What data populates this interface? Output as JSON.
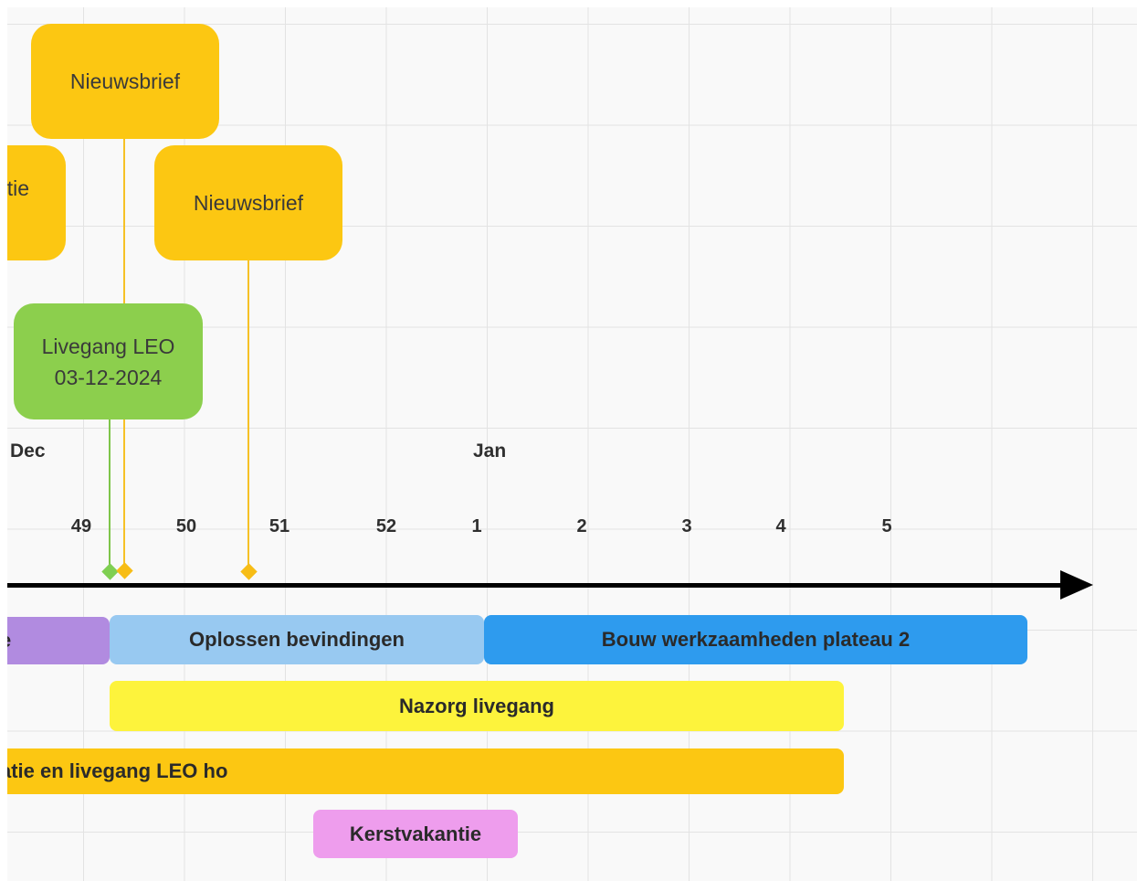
{
  "board": {
    "cards": [
      {
        "label": "Nieuwsbrief",
        "color": "#fcc712"
      },
      {
        "label": "tie",
        "color": "#fcc712"
      },
      {
        "label": "Nieuwsbrief",
        "color": "#fcc712"
      },
      {
        "label": "Livegang LEO\n03-12-2024",
        "color": "#8ccf4d"
      }
    ]
  },
  "timeline": {
    "months": [
      "Dec",
      "Jan"
    ],
    "weeks": [
      "49",
      "50",
      "51",
      "52",
      "1",
      "2",
      "3",
      "4",
      "5"
    ]
  },
  "bars": [
    {
      "label": "e",
      "color": "#b18be0"
    },
    {
      "label": "Oplossen bevindingen",
      "color": "#98c9f1"
    },
    {
      "label": "Bouw werkzaamheden plateau 2",
      "color": "#2e9bee"
    },
    {
      "label": "Nazorg livegang",
      "color": "#fdf33c"
    },
    {
      "label": "atie en livegang LEO ho",
      "color": "#fcc712"
    },
    {
      "label": "Kerstvakantie",
      "color": "#ee9ded"
    }
  ]
}
